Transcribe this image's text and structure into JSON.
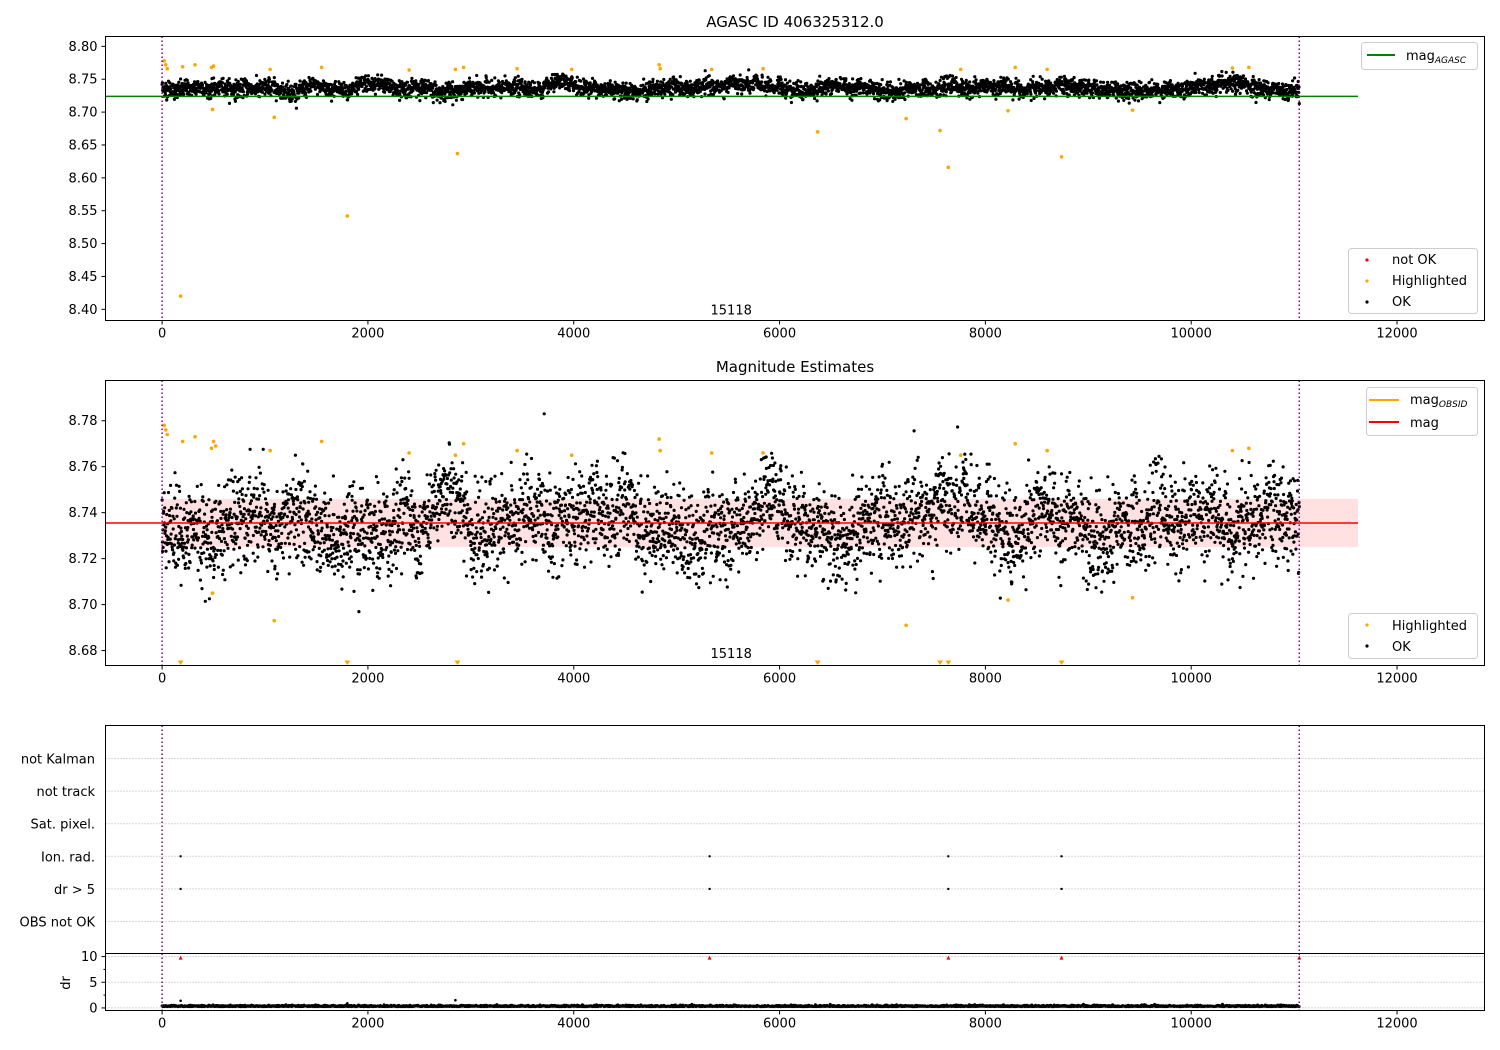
{
  "chart_data": [
    {
      "type": "scatter",
      "title": "AGASC ID 406325312.0",
      "xlim": [
        -550,
        12850
      ],
      "ylim": [
        8.383,
        8.815
      ],
      "x_ticks": [
        0,
        2000,
        4000,
        6000,
        8000,
        10000,
        12000
      ],
      "y_ticks": [
        8.4,
        8.45,
        8.5,
        8.55,
        8.6,
        8.65,
        8.7,
        8.75,
        8.8
      ],
      "vlines_x": [
        0,
        11050
      ],
      "annotation": {
        "text": "15118",
        "x": 5530,
        "y": 8.4
      },
      "legend_top": {
        "position": "upper right",
        "entries": [
          {
            "label": "mag",
            "sub": "AGASC",
            "color": "#008000"
          }
        ]
      },
      "legend_bottom": {
        "position": "lower right",
        "entries": [
          {
            "label": "not OK",
            "color": "#ff0000"
          },
          {
            "label": "Highlighted",
            "color": "#ffa500"
          },
          {
            "label": "OK",
            "color": "#000000"
          }
        ]
      },
      "hline": {
        "y": 8.724,
        "x_range": [
          -550,
          11620
        ],
        "color": "#008000"
      },
      "ok_band": {
        "x_range": [
          0,
          11050
        ],
        "center": 8.736,
        "spread": 0.018,
        "color": "#000000"
      },
      "highlighted_points": [
        {
          "x": 20,
          "y": 8.778
        },
        {
          "x": 35,
          "y": 8.772
        },
        {
          "x": 50,
          "y": 8.766
        },
        {
          "x": 180,
          "y": 8.42
        },
        {
          "x": 200,
          "y": 8.769
        },
        {
          "x": 320,
          "y": 8.772
        },
        {
          "x": 480,
          "y": 8.768
        },
        {
          "x": 490,
          "y": 8.704
        },
        {
          "x": 500,
          "y": 8.77
        },
        {
          "x": 1050,
          "y": 8.765
        },
        {
          "x": 1090,
          "y": 8.692
        },
        {
          "x": 1550,
          "y": 8.768
        },
        {
          "x": 1800,
          "y": 8.542
        },
        {
          "x": 2400,
          "y": 8.764
        },
        {
          "x": 2850,
          "y": 8.765
        },
        {
          "x": 2870,
          "y": 8.637
        },
        {
          "x": 2930,
          "y": 8.768
        },
        {
          "x": 3450,
          "y": 8.766
        },
        {
          "x": 3980,
          "y": 8.765
        },
        {
          "x": 4830,
          "y": 8.772
        },
        {
          "x": 4840,
          "y": 8.766
        },
        {
          "x": 5340,
          "y": 8.765
        },
        {
          "x": 5840,
          "y": 8.766
        },
        {
          "x": 6370,
          "y": 8.67
        },
        {
          "x": 7230,
          "y": 8.69
        },
        {
          "x": 7560,
          "y": 8.672
        },
        {
          "x": 7640,
          "y": 8.616
        },
        {
          "x": 7760,
          "y": 8.765
        },
        {
          "x": 8220,
          "y": 8.702
        },
        {
          "x": 8290,
          "y": 8.768
        },
        {
          "x": 8600,
          "y": 8.765
        },
        {
          "x": 8740,
          "y": 8.632
        },
        {
          "x": 9430,
          "y": 8.703
        },
        {
          "x": 10400,
          "y": 8.767
        },
        {
          "x": 10560,
          "y": 8.768
        }
      ]
    },
    {
      "type": "scatter",
      "title": "Magnitude Estimates",
      "xlim": [
        -550,
        12850
      ],
      "ylim": [
        8.6735,
        8.7975
      ],
      "x_ticks": [
        0,
        2000,
        4000,
        6000,
        8000,
        10000,
        12000
      ],
      "y_ticks": [
        8.68,
        8.7,
        8.72,
        8.74,
        8.76,
        8.78
      ],
      "vlines_x": [
        0,
        11050
      ],
      "annotation": {
        "text": "15118",
        "x": 5530,
        "y": 8.679
      },
      "legend_top": {
        "position": "upper right",
        "entries": [
          {
            "label": "mag",
            "sub": "OBSID",
            "color": "#ffa500"
          },
          {
            "label": "mag",
            "color": "#ff0000"
          }
        ]
      },
      "legend_bottom": {
        "position": "lower right",
        "entries": [
          {
            "label": "Highlighted",
            "color": "#ffa500"
          },
          {
            "label": "OK",
            "color": "#000000"
          }
        ]
      },
      "hline": {
        "y": 8.7355,
        "x_range": [
          -550,
          11620
        ],
        "color": "#ff0000"
      },
      "shaded_band": {
        "y_range": [
          8.725,
          8.746
        ],
        "x_range": [
          0,
          11620
        ],
        "color": "#ffaaaa"
      },
      "ok_band": {
        "x_range": [
          0,
          11050
        ],
        "center": 8.735,
        "spread": 0.027,
        "color": "#000000"
      },
      "highlighted_points": [
        {
          "x": 20,
          "y": 8.778
        },
        {
          "x": 35,
          "y": 8.776
        },
        {
          "x": 50,
          "y": 8.774
        },
        {
          "x": 200,
          "y": 8.771
        },
        {
          "x": 320,
          "y": 8.773
        },
        {
          "x": 480,
          "y": 8.768
        },
        {
          "x": 490,
          "y": 8.705
        },
        {
          "x": 500,
          "y": 8.771
        },
        {
          "x": 520,
          "y": 8.769
        },
        {
          "x": 1050,
          "y": 8.767
        },
        {
          "x": 1090,
          "y": 8.693
        },
        {
          "x": 1550,
          "y": 8.771
        },
        {
          "x": 2400,
          "y": 8.766
        },
        {
          "x": 2850,
          "y": 8.765
        },
        {
          "x": 2930,
          "y": 8.77
        },
        {
          "x": 3450,
          "y": 8.767
        },
        {
          "x": 3980,
          "y": 8.765
        },
        {
          "x": 4830,
          "y": 8.772
        },
        {
          "x": 4840,
          "y": 8.767
        },
        {
          "x": 5340,
          "y": 8.766
        },
        {
          "x": 5840,
          "y": 8.766
        },
        {
          "x": 7230,
          "y": 8.691
        },
        {
          "x": 7760,
          "y": 8.765
        },
        {
          "x": 8220,
          "y": 8.702
        },
        {
          "x": 8290,
          "y": 8.77
        },
        {
          "x": 8600,
          "y": 8.767
        },
        {
          "x": 9430,
          "y": 8.703
        },
        {
          "x": 10400,
          "y": 8.767
        },
        {
          "x": 10560,
          "y": 8.768
        }
      ],
      "below_axis_markers_x": [
        180,
        1800,
        2870,
        6370,
        7560,
        7640,
        8740
      ]
    },
    {
      "type": "scatter",
      "title": "",
      "xlim": [
        -550,
        12850
      ],
      "x_ticks": [
        0,
        2000,
        4000,
        6000,
        8000,
        10000,
        12000
      ],
      "vlines_x": [
        0,
        11050
      ],
      "flag_rows": [
        "not Kalman",
        "not track",
        "Sat. pixel.",
        "Ion. rad.",
        "dr > 5",
        "OBS not OK"
      ],
      "flag_points": [
        {
          "row": "Ion. rad.",
          "x": 180
        },
        {
          "row": "Ion. rad.",
          "x": 5320
        },
        {
          "row": "Ion. rad.",
          "x": 7640
        },
        {
          "row": "Ion. rad.",
          "x": 8740
        },
        {
          "row": "dr > 5",
          "x": 180
        },
        {
          "row": "dr > 5",
          "x": 5320
        },
        {
          "row": "dr > 5",
          "x": 7640
        },
        {
          "row": "dr > 5",
          "x": 8740
        }
      ],
      "dr_panel": {
        "ylabel": "dr",
        "ylim": [
          -0.5,
          10.6
        ],
        "y_ticks": [
          0,
          5,
          10
        ],
        "ok_band": {
          "x_range": [
            0,
            11050
          ],
          "center": 0.25,
          "spread": 0.22
        },
        "scattered_points": [
          {
            "x": 180,
            "y": 1.4
          },
          {
            "x": 2850,
            "y": 1.5
          },
          {
            "x": 1800,
            "y": 0.9
          }
        ],
        "clipped_markers_x": [
          180,
          5320,
          7640,
          8740,
          11050
        ]
      }
    }
  ]
}
